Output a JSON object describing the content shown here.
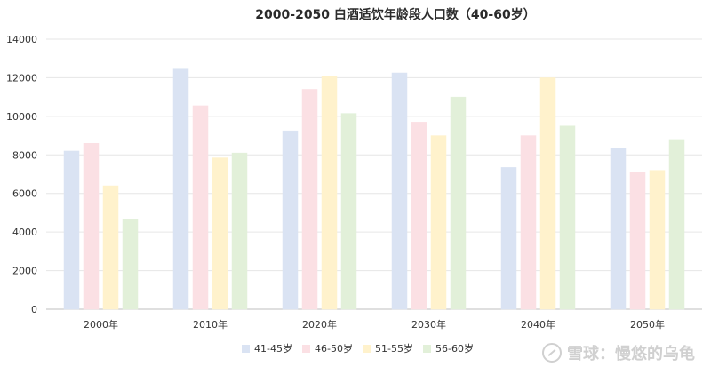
{
  "chart_data": {
    "type": "bar",
    "title": "2000-2050 白酒适饮年龄段人口数（40-60岁）",
    "categories": [
      "2000年",
      "2010年",
      "2020年",
      "2030年",
      "2040年",
      "2050年"
    ],
    "series": [
      {
        "name": "41-45岁",
        "color": "#dae3f3",
        "values": [
          8200,
          12450,
          9250,
          12250,
          7350,
          8350
        ]
      },
      {
        "name": "46-50岁",
        "color": "#fbe0e4",
        "values": [
          8600,
          10550,
          11400,
          9700,
          9000,
          7100
        ]
      },
      {
        "name": "51-55岁",
        "color": "#fff2cc",
        "values": [
          6400,
          7850,
          12100,
          9000,
          12000,
          7200
        ]
      },
      {
        "name": "56-60岁",
        "color": "#e2f0d9",
        "values": [
          4650,
          8100,
          10150,
          11000,
          9500,
          8800
        ]
      }
    ],
    "ylim": [
      0,
      14000
    ],
    "yticks": [
      0,
      2000,
      4000,
      6000,
      8000,
      10000,
      12000,
      14000
    ],
    "grid": true,
    "legend": "bottom"
  },
  "watermark": {
    "text": "雪球：慢悠的乌龟"
  }
}
